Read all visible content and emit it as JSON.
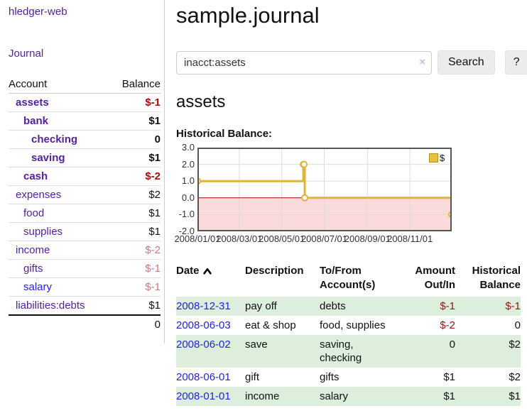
{
  "sidebar": {
    "app_title": "hledger-web",
    "nav": {
      "journal_label": "Journal"
    },
    "accounts_table": {
      "headers": {
        "account": "Account",
        "balance": "Balance"
      },
      "rows": [
        {
          "name": "assets",
          "indent": 1,
          "bold": true,
          "balance": "$-1",
          "balance_style": "negative"
        },
        {
          "name": "bank",
          "indent": 2,
          "bold": true,
          "balance": "$1",
          "balance_style": "normal"
        },
        {
          "name": "checking",
          "indent": 3,
          "bold": true,
          "balance": "0",
          "balance_style": "normal"
        },
        {
          "name": "saving",
          "indent": 3,
          "bold": true,
          "balance": "$1",
          "balance_style": "normal"
        },
        {
          "name": "cash",
          "indent": 2,
          "bold": true,
          "balance": "$-2",
          "balance_style": "negative"
        },
        {
          "name": "expenses",
          "indent": 1,
          "bold": false,
          "balance": "$2",
          "balance_style": "normal"
        },
        {
          "name": "food",
          "indent": 2,
          "bold": false,
          "balance": "$1",
          "balance_style": "normal"
        },
        {
          "name": "supplies",
          "indent": 2,
          "bold": false,
          "balance": "$1",
          "balance_style": "normal"
        },
        {
          "name": "income",
          "indent": 1,
          "bold": false,
          "balance": "$-2",
          "balance_style": "negative-faded"
        },
        {
          "name": "gifts",
          "indent": 2,
          "bold": false,
          "balance": "$-1",
          "balance_style": "negative-faded"
        },
        {
          "name": "salary",
          "indent": 2,
          "bold": false,
          "link_style": "blue",
          "balance": "$-1",
          "balance_style": "negative-faded"
        },
        {
          "name": "liabilities:debts",
          "indent": 1,
          "bold": false,
          "balance": "$1",
          "balance_style": "normal"
        }
      ],
      "total": "0"
    }
  },
  "main": {
    "page_title": "sample.journal",
    "search": {
      "value": "inacct:assets",
      "clear_icon": "×",
      "button_label": "Search",
      "help_label": "?"
    },
    "account_heading": "assets",
    "chart_heading": "Historical Balance:"
  },
  "chart_data": {
    "type": "line",
    "step": true,
    "title": "Historical Balance:",
    "series": [
      {
        "name": "$",
        "color": "#e2b33c",
        "points": [
          [
            "2008-01-01",
            1
          ],
          [
            "2008-06-01",
            2
          ],
          [
            "2008-06-02",
            2
          ],
          [
            "2008-06-03",
            0
          ],
          [
            "2008-12-31",
            -1
          ]
        ]
      }
    ],
    "x_range": [
      "2008-01-01",
      "2008-12-31"
    ],
    "x_ticks": [
      {
        "label": "2008/01/01",
        "date": "2008-01-01"
      },
      {
        "label": "2008/03/01",
        "date": "2008-03-01"
      },
      {
        "label": "2008/05/01",
        "date": "2008-05-01"
      },
      {
        "label": "2008/07/01",
        "date": "2008-07-01"
      },
      {
        "label": "2008/09/01",
        "date": "2008-09-01"
      },
      {
        "label": "2008/11/01",
        "date": "2008-11-01"
      }
    ],
    "y_ticks": [
      3.0,
      2.0,
      1.0,
      0.0,
      -1.0,
      -2.0
    ],
    "ylim": [
      -2,
      3
    ],
    "grid": true,
    "legend_position": "top-right",
    "negative_region_color": "#fadada",
    "zero_line_color": "#990000"
  },
  "register_table": {
    "headers": {
      "date": "Date",
      "sort_indicator": "ascending",
      "description": "Description",
      "account": "To/From Account(s)",
      "amount": "Amount Out/In",
      "balance": "Historical Balance"
    },
    "rows": [
      {
        "date": "2008-12-31",
        "description": "pay off",
        "accounts": "debts",
        "amount": "$-1",
        "amount_style": "negative",
        "balance": "$-1",
        "balance_style": "negative",
        "striped": true
      },
      {
        "date": "2008-06-03",
        "description": "eat & shop",
        "accounts": "food, supplies",
        "amount": "$-2",
        "amount_style": "negative",
        "balance": "0",
        "balance_style": "normal",
        "striped": false
      },
      {
        "date": "2008-06-02",
        "description": "save",
        "accounts": "saving, checking",
        "amount": "0",
        "amount_style": "normal",
        "balance": "$2",
        "balance_style": "normal",
        "striped": true
      },
      {
        "date": "2008-06-01",
        "description": "gift",
        "accounts": "gifts",
        "amount": "$1",
        "amount_style": "normal",
        "balance": "$2",
        "balance_style": "normal",
        "striped": false
      },
      {
        "date": "2008-01-01",
        "description": "income",
        "accounts": "salary",
        "amount": "$1",
        "amount_style": "normal",
        "balance": "$1",
        "balance_style": "normal",
        "striped": true
      }
    ]
  },
  "colors": {
    "link_purple": "#552299",
    "link_blue": "#2222dd",
    "negative_red": "#a01010",
    "negative_faded": "#c08080",
    "stripe_green": "#ddeedd",
    "chart_line_yellow": "#e2b33c",
    "chart_negative_bg": "#fadada",
    "chart_zero_line": "#990000",
    "button_bg": "#ececec"
  }
}
